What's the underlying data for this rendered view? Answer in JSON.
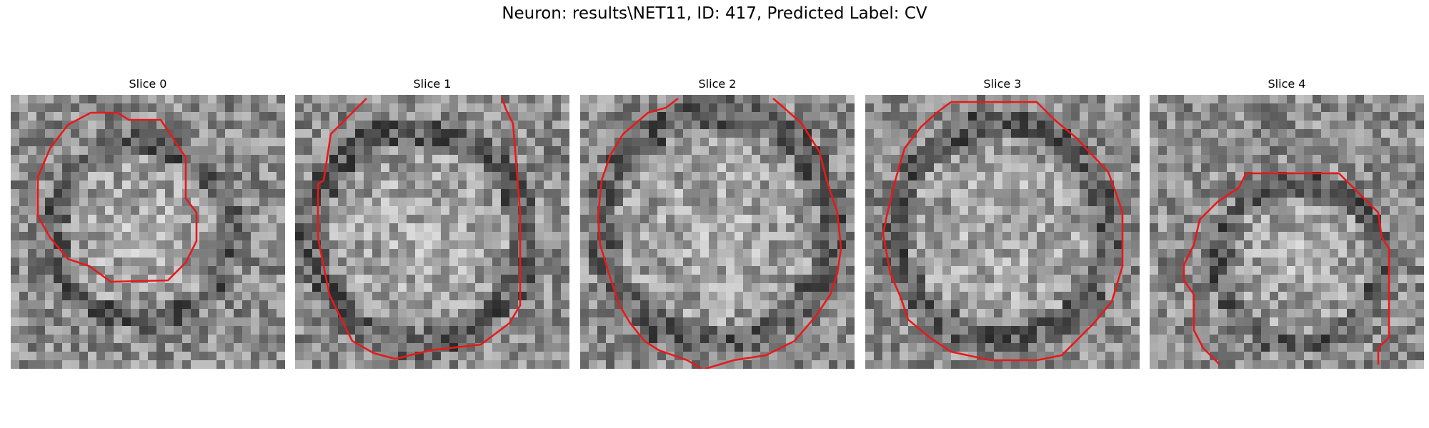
{
  "figure": {
    "title": "Neuron: results\\NET11, ID: 417, Predicted Label: CV"
  },
  "panels": [
    {
      "title": "Slice 0",
      "contour_color": "#e8191a"
    },
    {
      "title": "Slice 1",
      "contour_color": "#e8191a"
    },
    {
      "title": "Slice 2",
      "contour_color": "#e8191a"
    },
    {
      "title": "Slice 3",
      "contour_color": "#e8191a"
    },
    {
      "title": "Slice 4",
      "contour_color": "#e8191a"
    }
  ]
}
